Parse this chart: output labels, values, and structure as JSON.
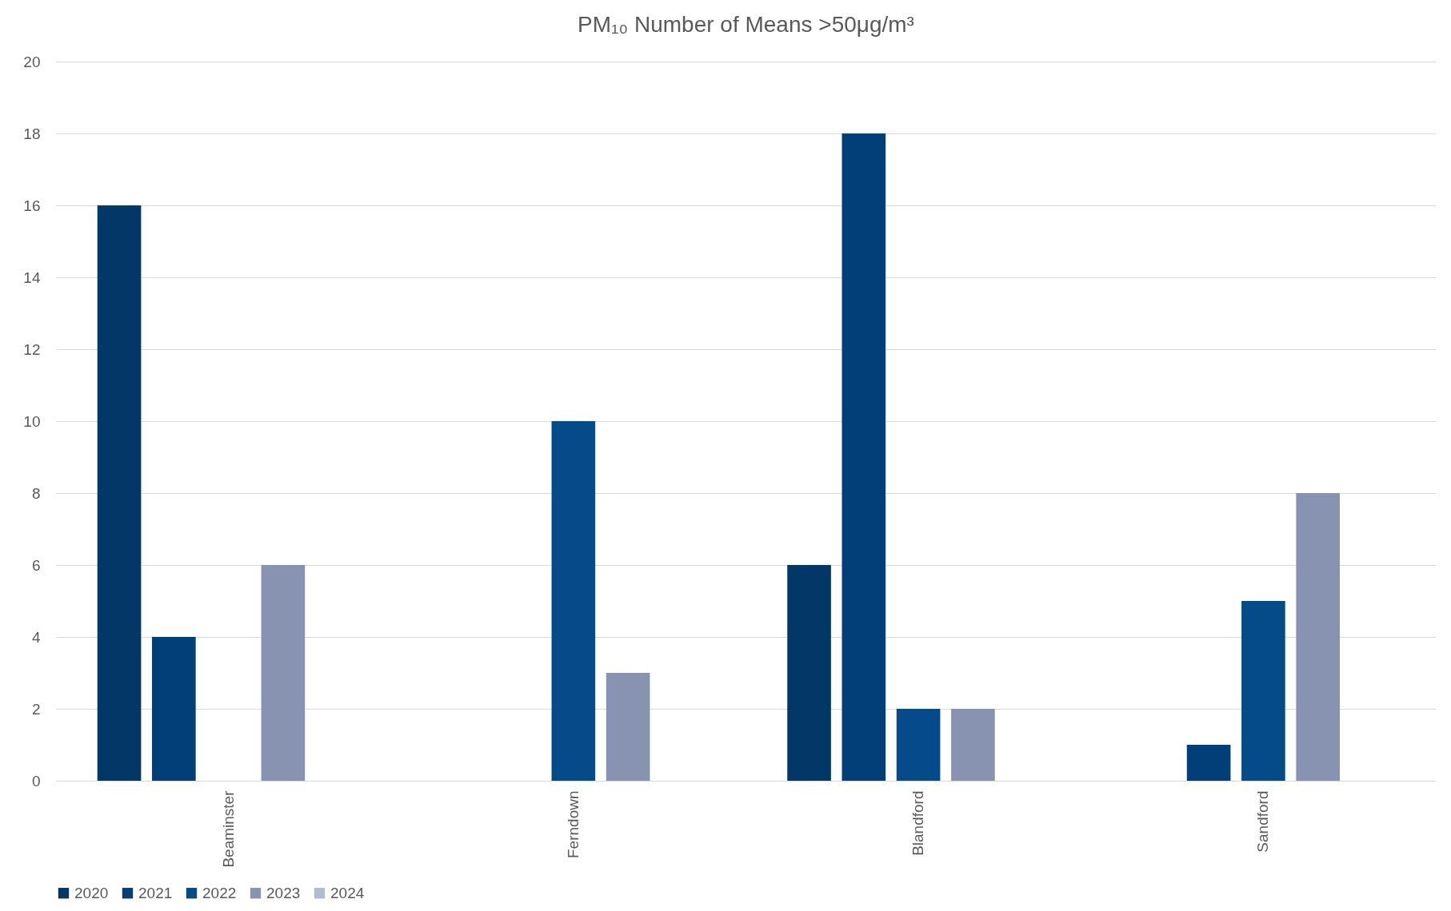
{
  "chart_data": {
    "type": "bar",
    "title": "PM₁₀ Number of Means >50μg/m³",
    "categories": [
      "Beaminster",
      "Ferndown",
      "Blandford",
      "Sandford"
    ],
    "series": [
      {
        "name": "2020",
        "color": "#033767",
        "values": [
          16,
          null,
          6,
          null
        ]
      },
      {
        "name": "2021",
        "color": "#023f78",
        "values": [
          4,
          null,
          18,
          1
        ]
      },
      {
        "name": "2022",
        "color": "#064b89",
        "values": [
          null,
          10,
          2,
          5
        ]
      },
      {
        "name": "2023",
        "color": "#8793b0",
        "values": [
          6,
          3,
          2,
          8
        ]
      },
      {
        "name": "2024",
        "color": "#b4bbcc",
        "values": [
          null,
          null,
          null,
          null
        ]
      }
    ],
    "ylim": [
      0,
      20
    ],
    "yticks": [
      0,
      2,
      4,
      6,
      8,
      10,
      12,
      14,
      16,
      18,
      20
    ],
    "grid": "y",
    "legend": "bottom"
  }
}
